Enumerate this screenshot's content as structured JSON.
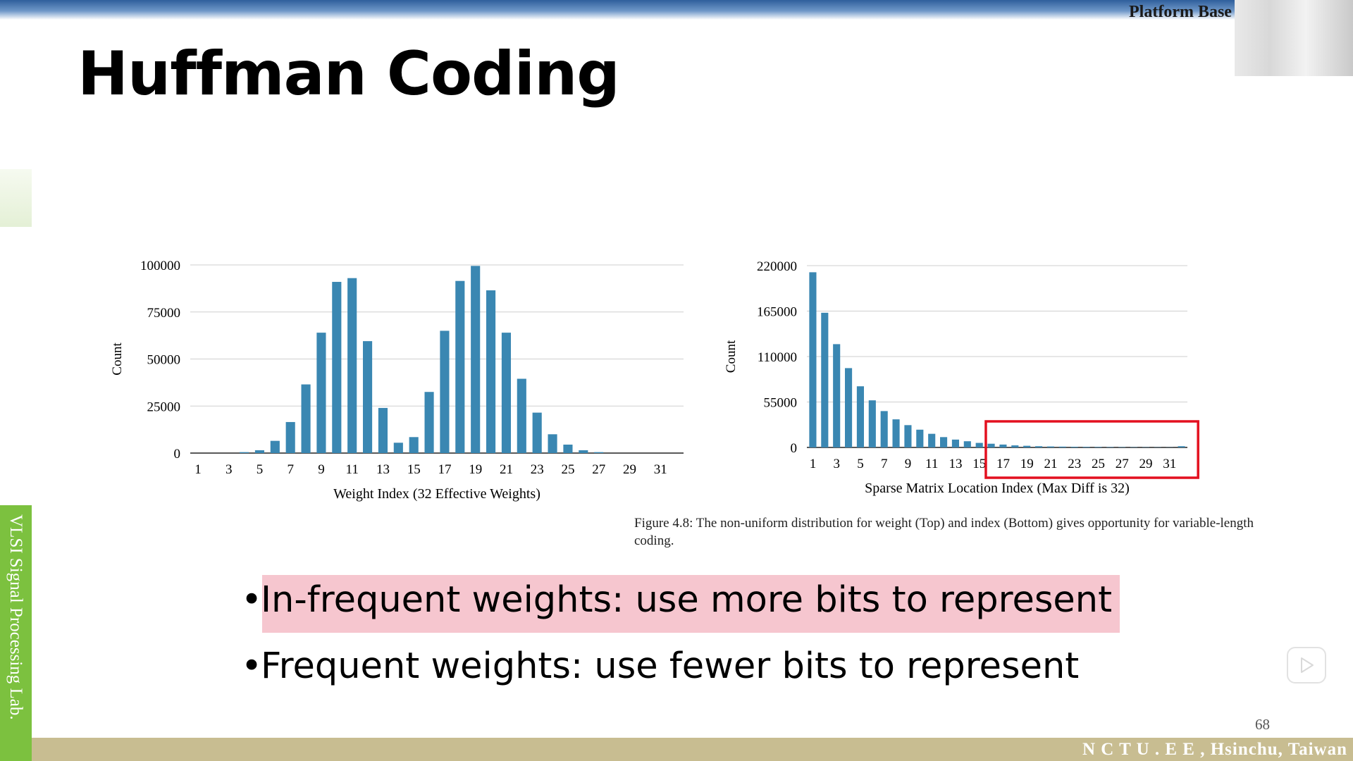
{
  "header": {
    "partial_label": "Platform Base"
  },
  "slide": {
    "title": "Huffman Coding",
    "side_label": "VLSI Signal Processing Lab.",
    "footer": "N C T U . E E , Hsinchu, Taiwan",
    "page_number": "68",
    "bullets": [
      {
        "text": "In-frequent weights: use more bits to represent",
        "highlight": "#f6c6cf"
      },
      {
        "text": "Frequent weights: use fewer bits to represent"
      }
    ]
  },
  "caption": "Figure 4.8: The non-uniform distribution for weight (Top) and index (Bottom) gives opportunity for variable-length coding.",
  "colors": {
    "bar": "#3a87b2",
    "highlight_box": "#e3101f",
    "top_bar": "#2f5f9c",
    "green_strip": "#7cc13f",
    "bottom_bar": "#c8bd91"
  },
  "icons": {
    "play": "play-icon"
  },
  "chart_data": [
    {
      "type": "bar",
      "title": "",
      "xlabel": "Weight Index (32 Effective Weights)",
      "ylabel": "Count",
      "ylim": [
        0,
        100000
      ],
      "yticks": [
        0,
        25000,
        50000,
        75000,
        100000
      ],
      "xticks": [
        "1",
        "3",
        "5",
        "7",
        "9",
        "11",
        "13",
        "15",
        "17",
        "19",
        "21",
        "23",
        "25",
        "27",
        "29",
        "31"
      ],
      "categories": [
        1,
        2,
        3,
        4,
        5,
        6,
        7,
        8,
        9,
        10,
        11,
        12,
        13,
        14,
        15,
        16,
        17,
        18,
        19,
        20,
        21,
        22,
        23,
        24,
        25,
        26,
        27,
        28,
        29,
        30,
        31,
        32
      ],
      "values": [
        0,
        0,
        0,
        500,
        1500,
        6500,
        16500,
        36500,
        64000,
        91000,
        93000,
        59500,
        24000,
        5500,
        8500,
        32500,
        65000,
        91500,
        99500,
        86500,
        64000,
        39500,
        21500,
        10000,
        4500,
        1500,
        500,
        0,
        0,
        0,
        0,
        0
      ],
      "grid": true
    },
    {
      "type": "bar",
      "title": "",
      "xlabel": "Sparse Matrix Location Index (Max Diff is 32)",
      "ylabel": "Count",
      "ylim": [
        0,
        220000
      ],
      "yticks": [
        0,
        55000,
        110000,
        165000,
        220000
      ],
      "xticks": [
        "1",
        "3",
        "5",
        "7",
        "9",
        "11",
        "13",
        "15",
        "17",
        "19",
        "21",
        "23",
        "25",
        "27",
        "29",
        "31"
      ],
      "categories": [
        1,
        2,
        3,
        4,
        5,
        6,
        7,
        8,
        9,
        10,
        11,
        12,
        13,
        14,
        15,
        16,
        17,
        18,
        19,
        20,
        21,
        22,
        23,
        24,
        25,
        26,
        27,
        28,
        29,
        30,
        31,
        32
      ],
      "values": [
        212000,
        163000,
        125000,
        96000,
        74000,
        57000,
        44000,
        34000,
        27000,
        21500,
        16500,
        12500,
        9500,
        7500,
        5500,
        4500,
        3500,
        2500,
        2000,
        1500,
        1200,
        1000,
        800,
        700,
        600,
        500,
        400,
        350,
        300,
        250,
        200,
        1500
      ],
      "highlight_region": {
        "from_index": 16,
        "to_index": 32,
        "color": "#e3101f"
      },
      "grid": true
    }
  ]
}
